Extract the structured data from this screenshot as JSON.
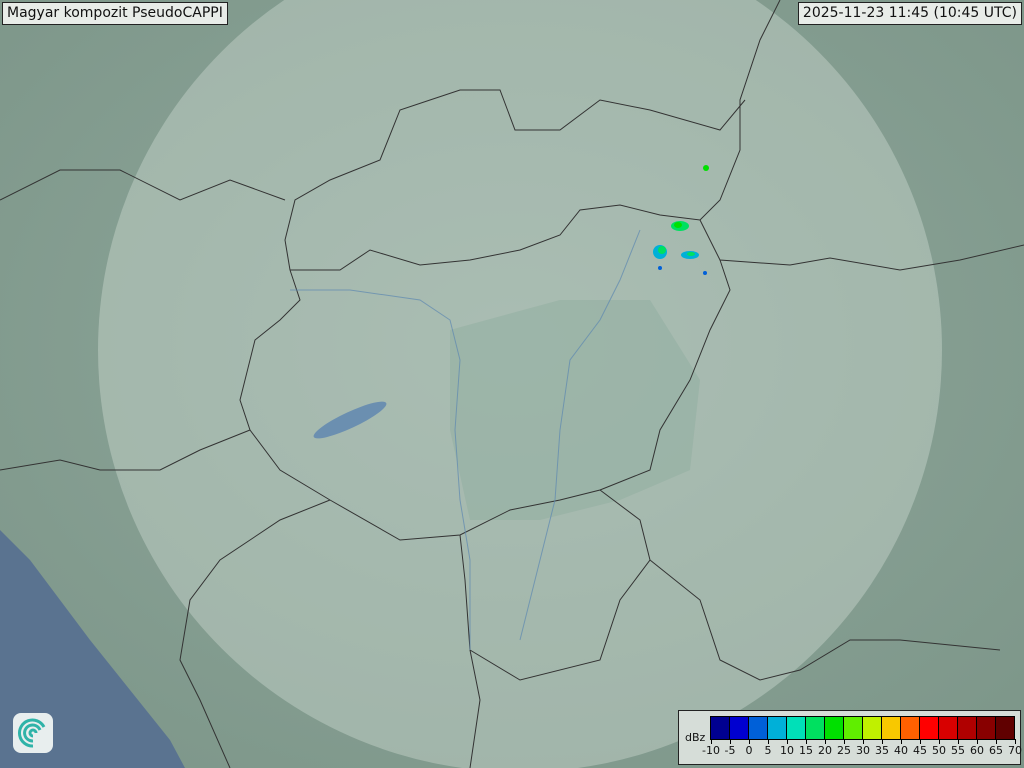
{
  "header": {
    "title": "Magyar kompozit  PseudoCAPPI",
    "timestamp": "2025-11-23 11:45 (10:45 UTC)"
  },
  "legend": {
    "unit": "dBz",
    "labels": [
      "-10",
      "-5",
      "0",
      "5",
      "10",
      "15",
      "20",
      "25",
      "30",
      "35",
      "40",
      "45",
      "50",
      "55",
      "60",
      "65",
      "70"
    ],
    "colors": [
      "#000090",
      "#0000d0",
      "#0060d8",
      "#00b0d8",
      "#00e0b8",
      "#00e060",
      "#00e000",
      "#60ee00",
      "#c0f000",
      "#f8c800",
      "#ff6000",
      "#ff0000",
      "#d80000",
      "#b00000",
      "#880000",
      "#600000"
    ]
  },
  "logo": {
    "icon": "spiral-logo-icon"
  }
}
